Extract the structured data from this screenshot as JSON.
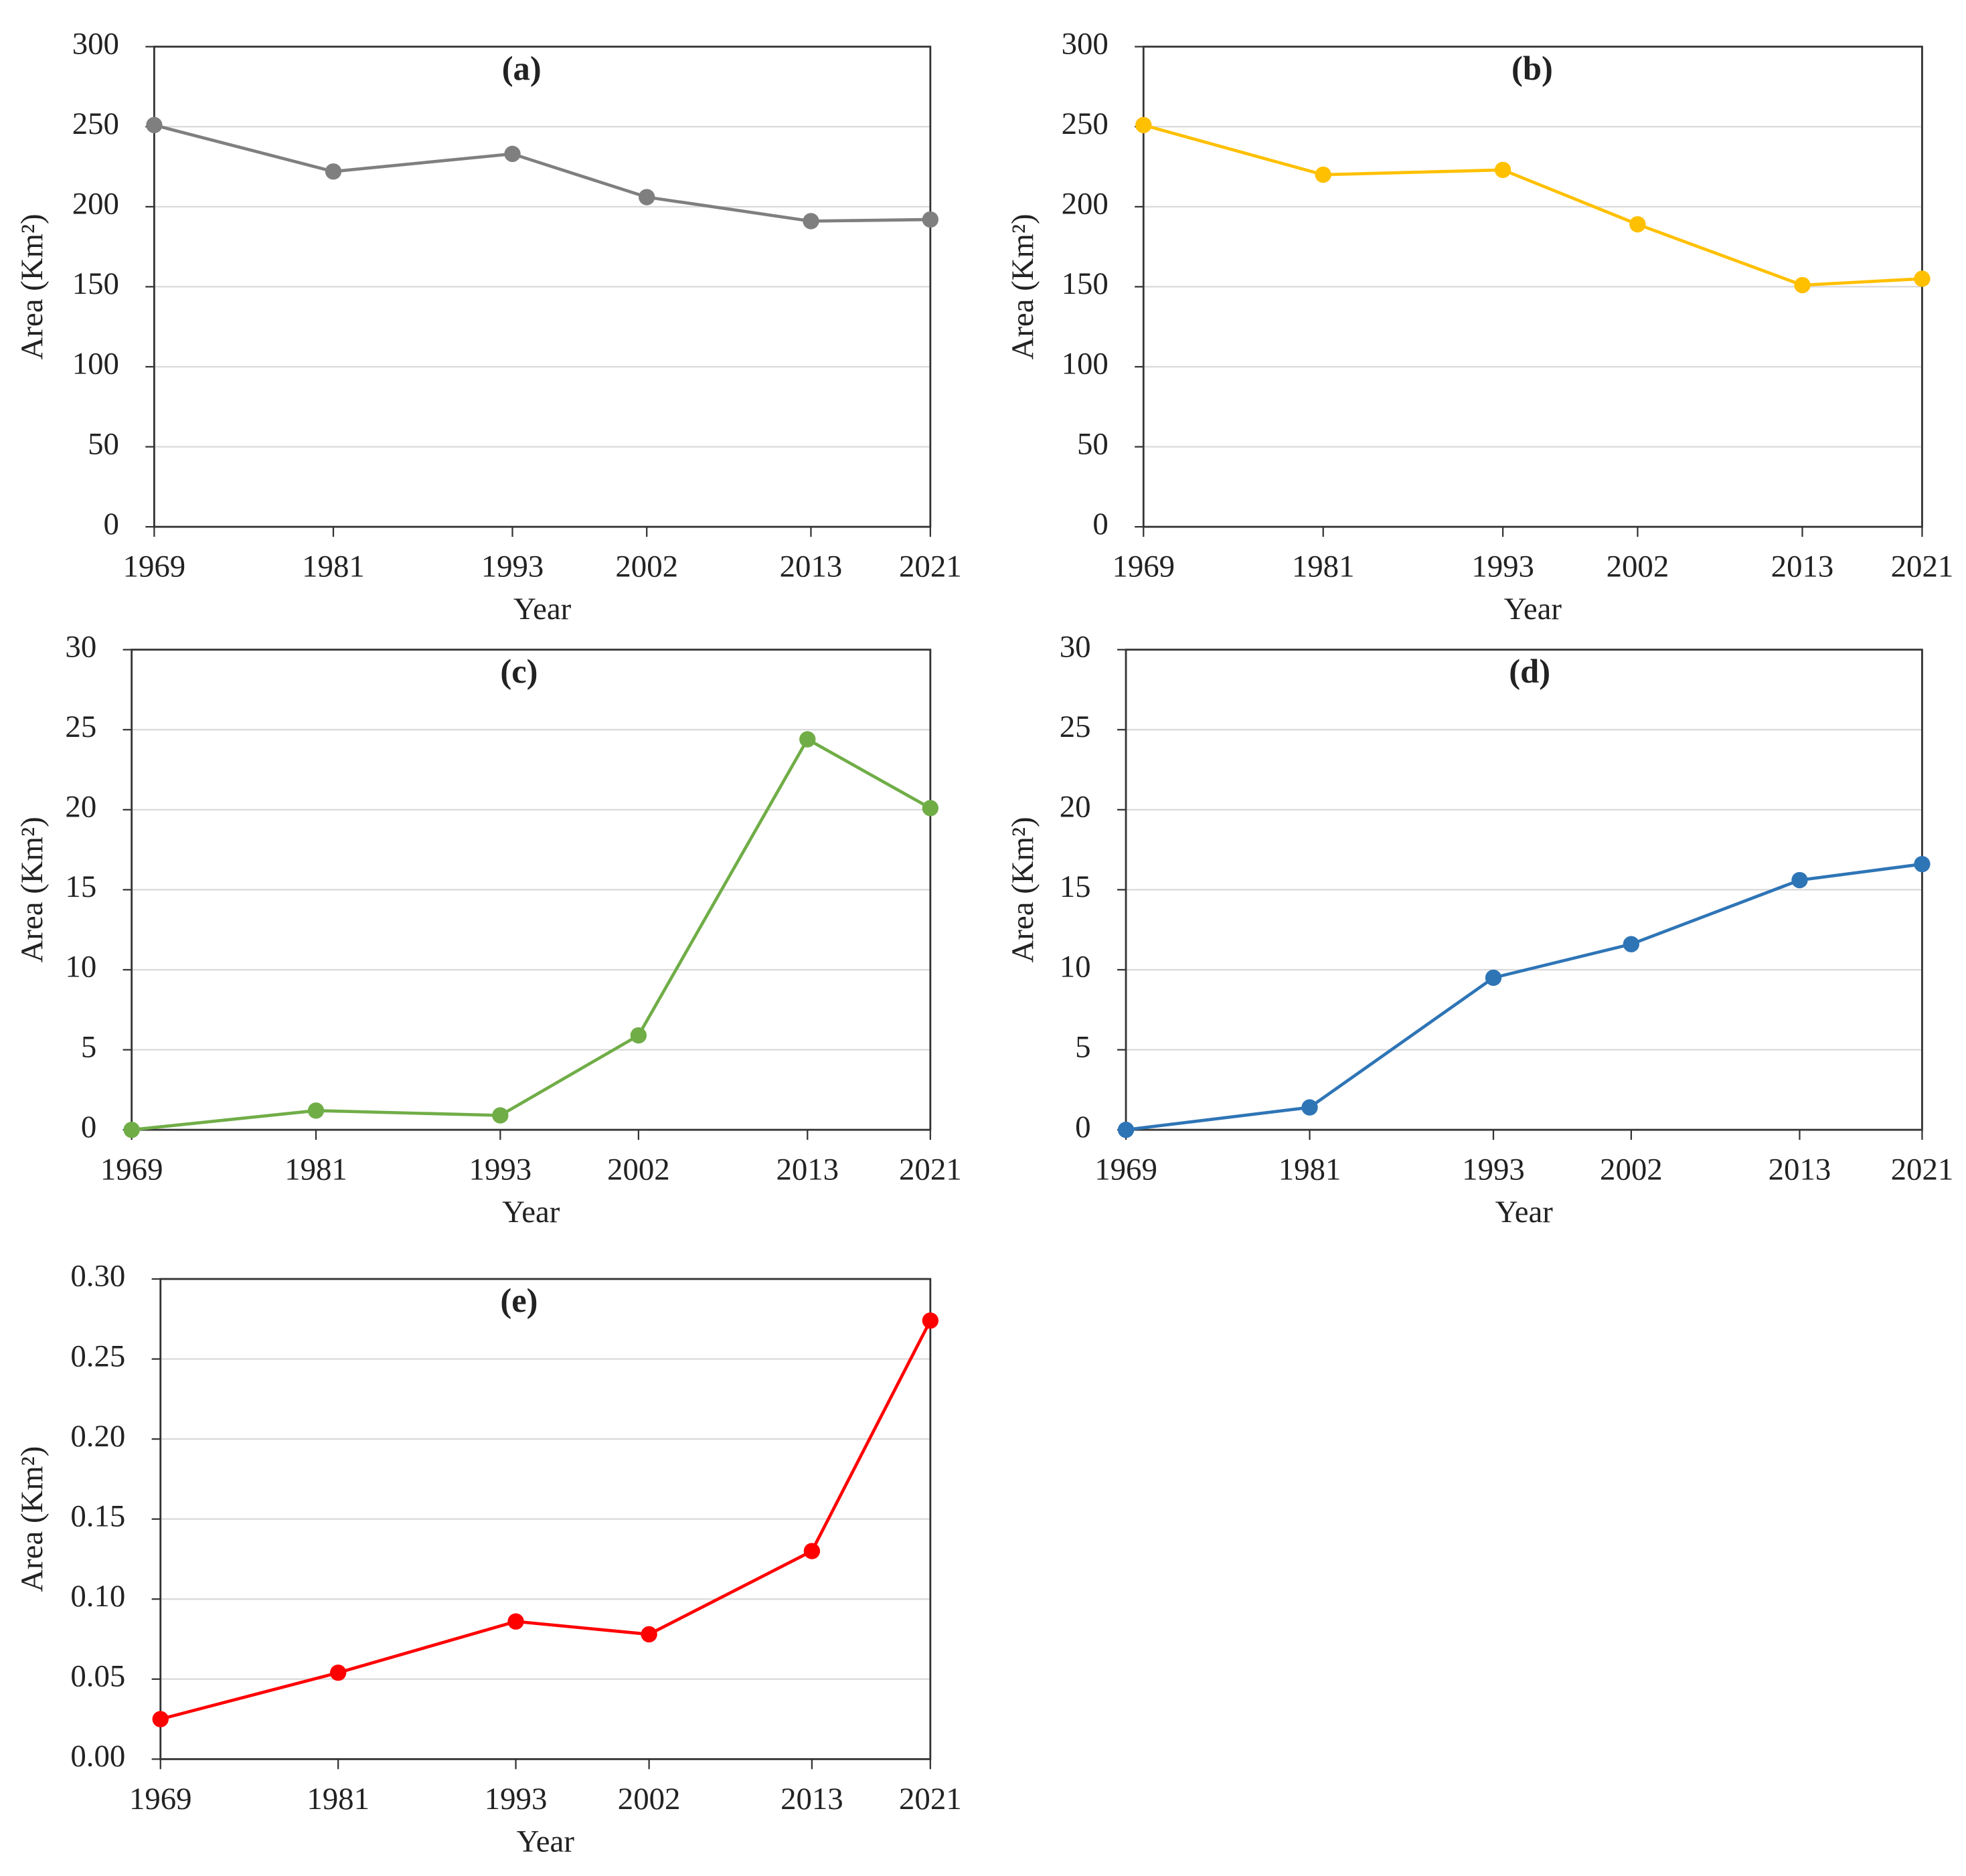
{
  "chart_data": [
    {
      "type": "line",
      "title": "(a)",
      "x_label": "Year",
      "y_label": "Area (Km²)",
      "x": [
        1969,
        1981,
        1993,
        2002,
        2013,
        2021
      ],
      "values": [
        251,
        222,
        233,
        206,
        191,
        192
      ],
      "color": "#7f7f7f",
      "xlim": [
        1969,
        2021
      ],
      "xticks": [
        1969,
        1981,
        1993,
        2002,
        2013,
        2021
      ],
      "ylim": [
        0,
        300
      ],
      "yticks": [
        0,
        50,
        100,
        150,
        200,
        250,
        300
      ],
      "grid": true
    },
    {
      "type": "line",
      "title": "(b)",
      "x_label": "Year",
      "y_label": "Area (Km²)",
      "x": [
        1969,
        1981,
        1993,
        2002,
        2013,
        2021
      ],
      "values": [
        251,
        220,
        223,
        189,
        151,
        155
      ],
      "color": "#ffc000",
      "xlim": [
        1969,
        2021
      ],
      "xticks": [
        1969,
        1981,
        1993,
        2002,
        2013,
        2021
      ],
      "ylim": [
        0,
        300
      ],
      "yticks": [
        0,
        50,
        100,
        150,
        200,
        250,
        300
      ],
      "grid": true
    },
    {
      "type": "line",
      "title": "(c)",
      "x_label": "Year",
      "y_label": "Area (Km²)",
      "x": [
        1969,
        1981,
        1993,
        2002,
        2013,
        2021
      ],
      "values": [
        0,
        1.2,
        0.9,
        5.9,
        24.4,
        20.1
      ],
      "color": "#70ad47",
      "xlim": [
        1969,
        2021
      ],
      "xticks": [
        1969,
        1981,
        1993,
        2002,
        2013,
        2021
      ],
      "ylim": [
        0,
        30
      ],
      "yticks": [
        0,
        5,
        10,
        15,
        20,
        25,
        30
      ],
      "grid": true
    },
    {
      "type": "line",
      "title": "(d)",
      "x_label": "Year",
      "y_label": "Area (Km²)",
      "x": [
        1969,
        1981,
        1993,
        2002,
        2013,
        2021
      ],
      "values": [
        0,
        1.4,
        9.5,
        11.6,
        15.6,
        16.6
      ],
      "color": "#2e75b6",
      "xlim": [
        1969,
        2021
      ],
      "xticks": [
        1969,
        1981,
        1993,
        2002,
        2013,
        2021
      ],
      "ylim": [
        0,
        30
      ],
      "yticks": [
        0,
        5,
        10,
        15,
        20,
        25,
        30
      ],
      "grid": true
    },
    {
      "type": "line",
      "title": "(e)",
      "x_label": "Year",
      "y_label": "Area (Km²)",
      "x": [
        1969,
        1981,
        1993,
        2002,
        2013,
        2021
      ],
      "values": [
        0.025,
        0.054,
        0.086,
        0.078,
        0.13,
        0.274
      ],
      "color": "#ff0000",
      "xlim": [
        1969,
        2021
      ],
      "xticks": [
        1969,
        1981,
        1993,
        2002,
        2013,
        2021
      ],
      "ylim": [
        0,
        0.3
      ],
      "yticks": [
        {
          "value": 0,
          "label": "0.00"
        },
        0.05,
        {
          "value": 0.1,
          "label": "0.10"
        },
        0.15,
        {
          "value": 0.2,
          "label": "0.20"
        },
        0.25,
        {
          "value": 0.3,
          "label": "0.30"
        }
      ],
      "grid": true
    }
  ]
}
